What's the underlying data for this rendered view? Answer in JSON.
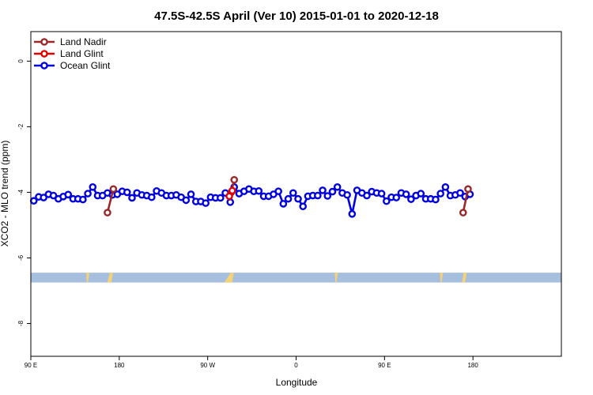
{
  "chart_data": {
    "type": "line",
    "title": "47.5S-42.5S April (Ver 10)   2015-01-01 to 2020-12-18",
    "xlabel": "Longitude",
    "ylabel": "XCO2 - MLO trend (ppm)",
    "xlim": [
      0,
      540
    ],
    "ylim": [
      -9.0,
      0.9
    ],
    "x_ticks": [
      {
        "value": 0,
        "label": "90 E"
      },
      {
        "value": 90,
        "label": "180"
      },
      {
        "value": 180,
        "label": "90 W"
      },
      {
        "value": 270,
        "label": "0"
      },
      {
        "value": 360,
        "label": "90 E"
      },
      {
        "value": 450,
        "label": "180"
      }
    ],
    "y_ticks": [
      {
        "value": 0,
        "label": "0"
      },
      {
        "value": -2,
        "label": "-2"
      },
      {
        "value": -4,
        "label": "-4"
      },
      {
        "value": -6,
        "label": "-6"
      },
      {
        "value": -8,
        "label": "-8"
      }
    ],
    "legend_position": "top-left",
    "grid": false,
    "land_band": {
      "color": "#a7bfdf",
      "y_range": [
        -6.45,
        -6.75
      ]
    },
    "land_patches": {
      "color": "#f4d27a",
      "y_range": [
        -6.45,
        -6.75
      ],
      "x_ranges": [
        [
          57,
          58
        ],
        [
          78,
          82
        ],
        [
          197,
          205
        ],
        [
          310,
          311
        ],
        [
          417,
          418
        ],
        [
          439,
          442
        ]
      ]
    },
    "series": [
      {
        "name": "Land Nadir",
        "color": "#9b2828",
        "segments": [
          [
            [
              78,
              -4.62
            ],
            [
              84,
              -3.9
            ]
          ],
          [
            [
              204,
              -4.0
            ],
            [
              207,
              -3.62
            ]
          ],
          [
            [
              440,
              -4.62
            ],
            [
              445,
              -3.9
            ]
          ]
        ]
      },
      {
        "name": "Land Glint",
        "color": "#e00000",
        "segments": [
          [
            [
              202,
              -4.12
            ],
            [
              205,
              -3.95
            ]
          ]
        ]
      },
      {
        "name": "Ocean Glint",
        "color": "#0000e0",
        "segments": [
          [
            [
              3,
              -4.26
            ],
            [
              8,
              -4.14
            ],
            [
              13,
              -4.16
            ],
            [
              18,
              -4.06
            ],
            [
              23,
              -4.1
            ],
            [
              28,
              -4.2
            ],
            [
              33,
              -4.13
            ],
            [
              38,
              -4.07
            ],
            [
              43,
              -4.2
            ],
            [
              48,
              -4.2
            ],
            [
              53,
              -4.22
            ],
            [
              58,
              -4.04
            ],
            [
              63,
              -3.84
            ],
            [
              68,
              -4.1
            ],
            [
              73,
              -4.1
            ],
            [
              78,
              -4.02
            ],
            [
              83,
              -4.08
            ],
            [
              88,
              -4.06
            ],
            [
              93,
              -3.97
            ],
            [
              98,
              -4.0
            ],
            [
              103,
              -4.17
            ],
            [
              108,
              -4.02
            ],
            [
              113,
              -4.08
            ],
            [
              118,
              -4.1
            ],
            [
              123,
              -4.15
            ],
            [
              128,
              -3.96
            ],
            [
              133,
              -4.02
            ],
            [
              138,
              -4.1
            ],
            [
              143,
              -4.1
            ],
            [
              148,
              -4.08
            ],
            [
              153,
              -4.15
            ],
            [
              158,
              -4.24
            ],
            [
              163,
              -4.06
            ],
            [
              168,
              -4.28
            ],
            [
              173,
              -4.28
            ],
            [
              178,
              -4.33
            ],
            [
              183,
              -4.15
            ],
            [
              188,
              -4.17
            ],
            [
              193,
              -4.17
            ],
            [
              198,
              -4.02
            ],
            [
              203,
              -4.3
            ],
            [
              207,
              -3.84
            ],
            [
              212,
              -4.04
            ],
            [
              217,
              -3.97
            ],
            [
              222,
              -3.9
            ],
            [
              227,
              -3.97
            ],
            [
              232,
              -3.96
            ],
            [
              237,
              -4.12
            ],
            [
              242,
              -4.12
            ],
            [
              247,
              -4.06
            ],
            [
              252,
              -3.97
            ],
            [
              257,
              -4.35
            ],
            [
              262,
              -4.2
            ],
            [
              267,
              -4.02
            ],
            [
              272,
              -4.2
            ],
            [
              277,
              -4.43
            ],
            [
              282,
              -4.12
            ],
            [
              287,
              -4.1
            ],
            [
              292,
              -4.1
            ],
            [
              297,
              -3.94
            ],
            [
              302,
              -4.11
            ],
            [
              307,
              -3.98
            ],
            [
              312,
              -3.84
            ],
            [
              317,
              -4.02
            ],
            [
              322,
              -4.08
            ],
            [
              327,
              -4.66
            ],
            [
              332,
              -3.94
            ],
            [
              337,
              -4.02
            ],
            [
              342,
              -4.1
            ],
            [
              347,
              -3.98
            ],
            [
              352,
              -4.02
            ],
            [
              357,
              -4.04
            ],
            [
              362,
              -4.27
            ],
            [
              367,
              -4.15
            ],
            [
              372,
              -4.16
            ],
            [
              377,
              -4.02
            ],
            [
              382,
              -4.06
            ],
            [
              387,
              -4.21
            ],
            [
              392,
              -4.1
            ],
            [
              397,
              -4.04
            ],
            [
              402,
              -4.2
            ],
            [
              407,
              -4.2
            ],
            [
              412,
              -4.22
            ],
            [
              417,
              -4.04
            ],
            [
              422,
              -3.84
            ],
            [
              427,
              -4.1
            ],
            [
              432,
              -4.08
            ],
            [
              437,
              -4.02
            ],
            [
              442,
              -4.13
            ],
            [
              447,
              -4.06
            ]
          ]
        ]
      }
    ]
  }
}
